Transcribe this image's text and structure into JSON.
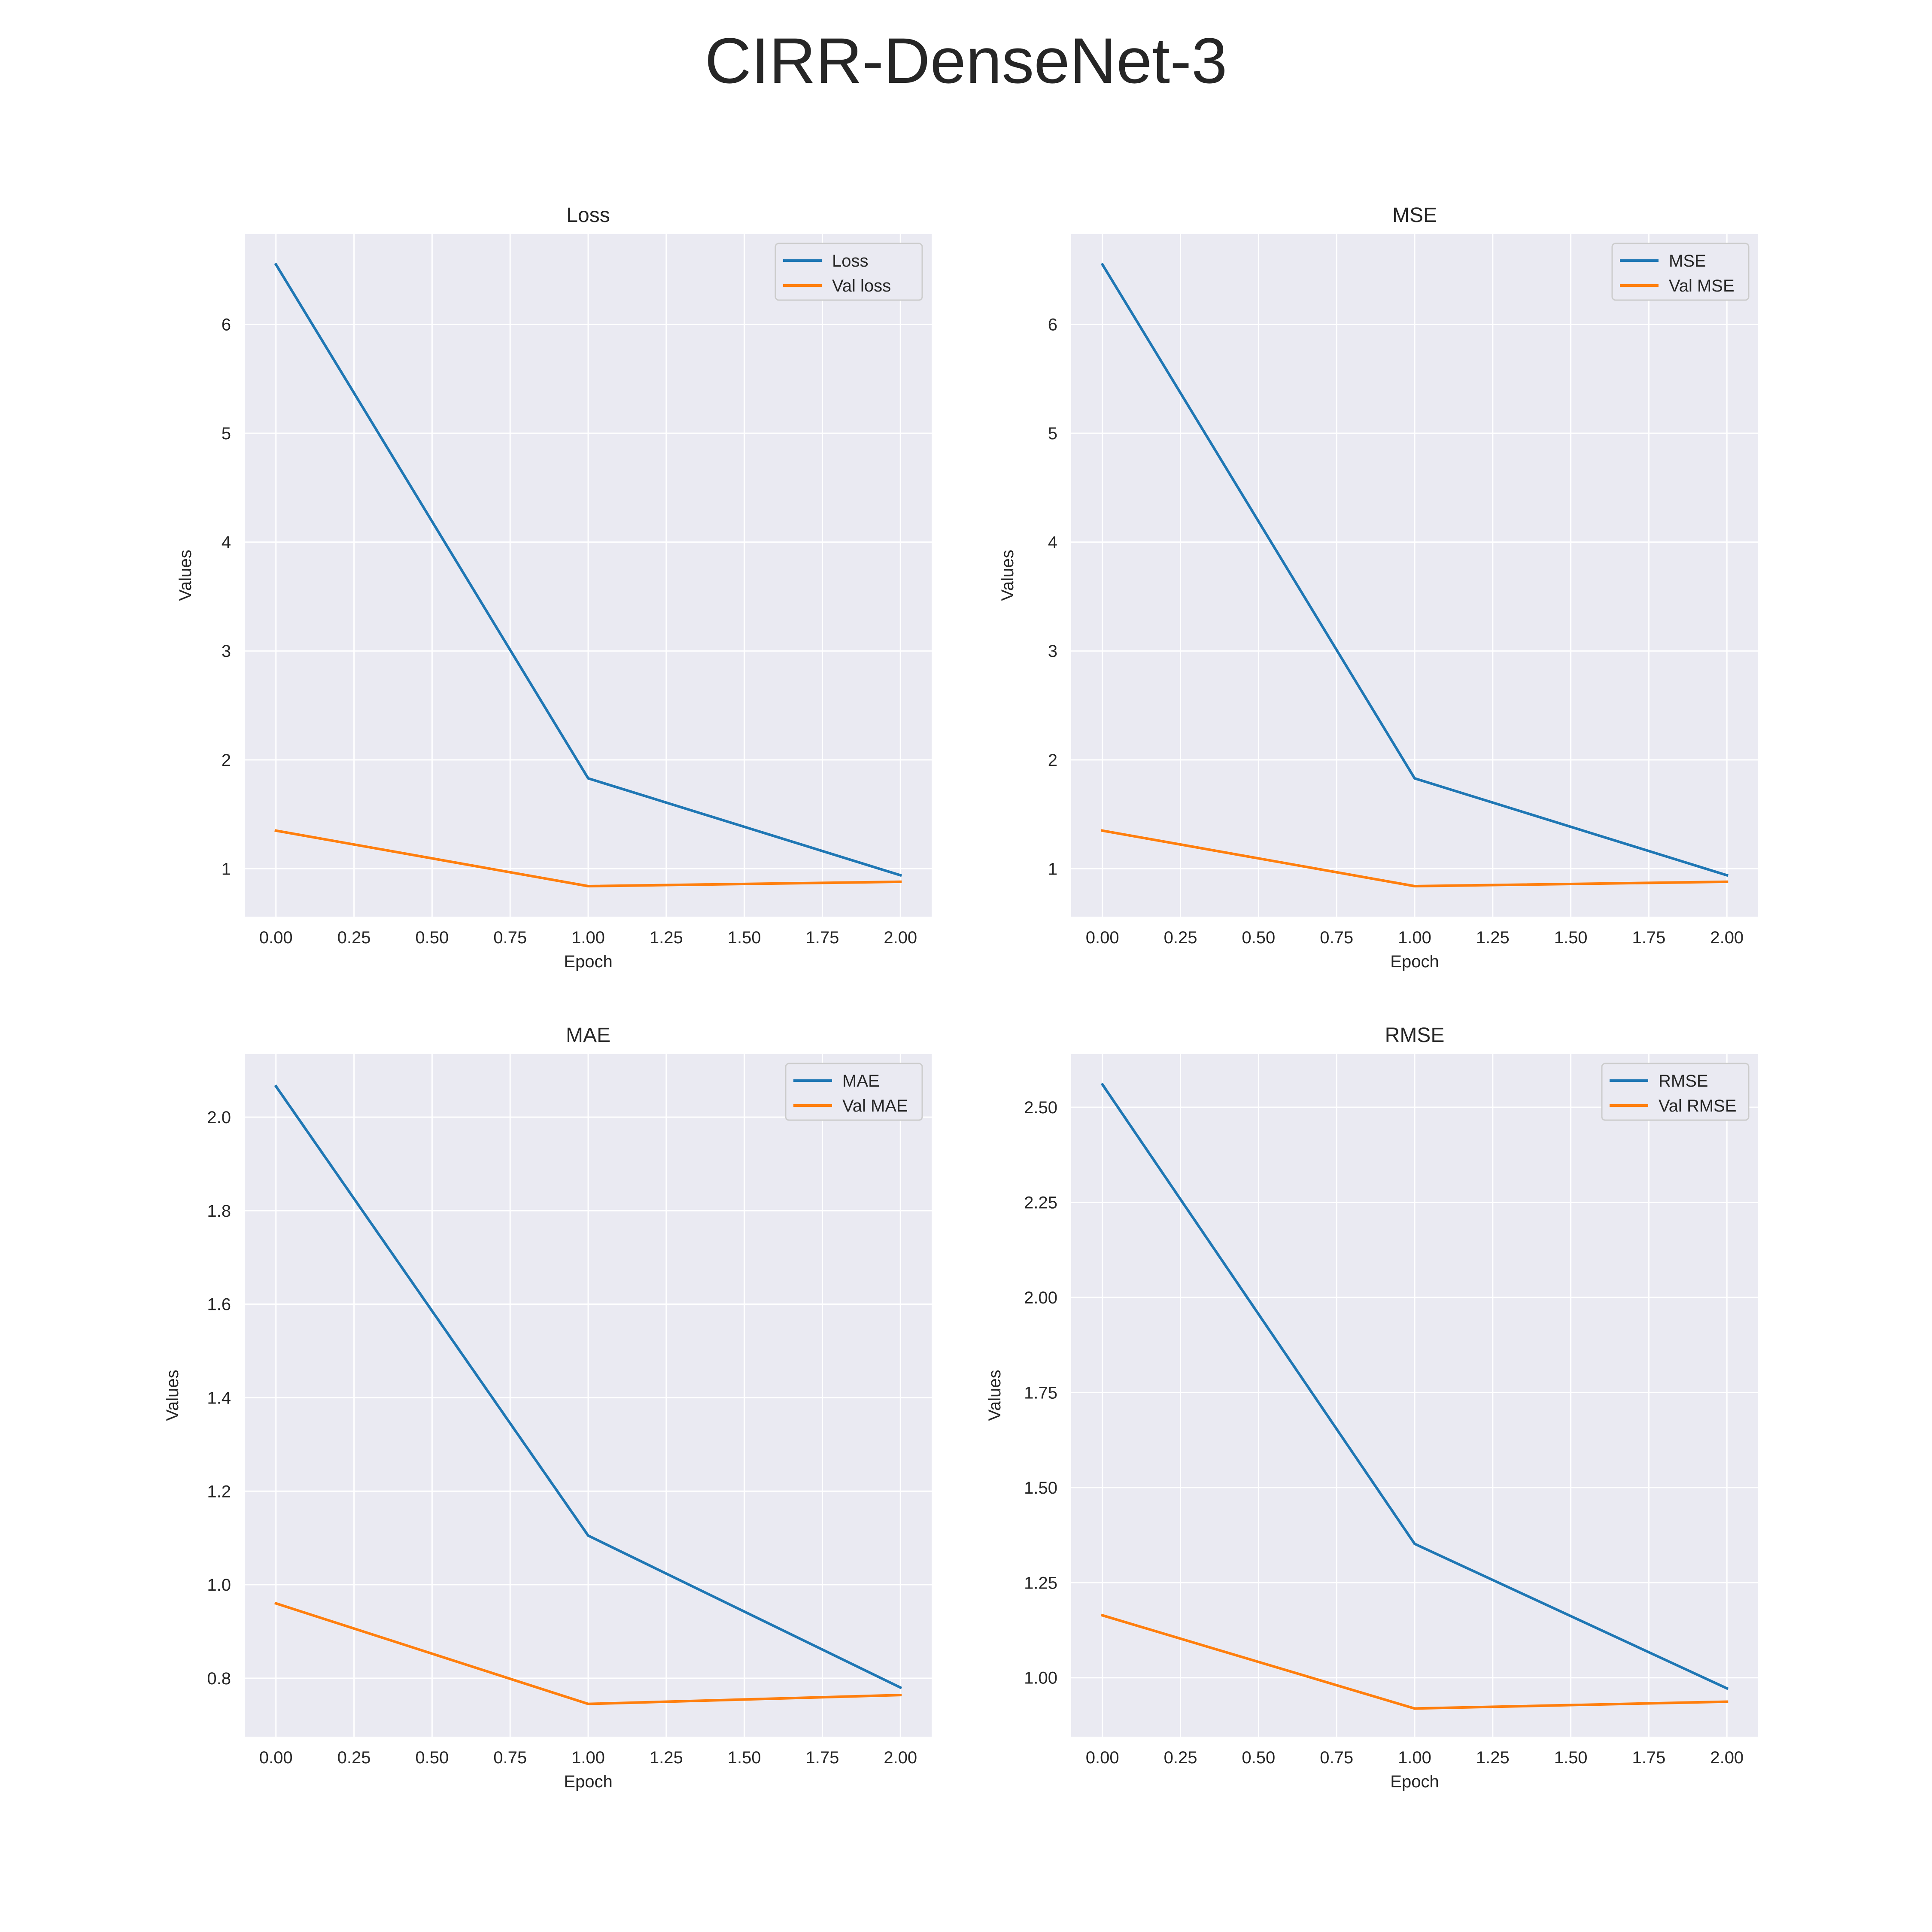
{
  "figure": {
    "suptitle": "CIRR-DenseNet-3"
  },
  "colors": {
    "background": "#eaeaf2",
    "grid": "#ffffff",
    "series_a": "#1f77b4",
    "series_b": "#ff7f0e"
  },
  "chart_data": [
    {
      "type": "line",
      "title": "Loss",
      "xlabel": "Epoch",
      "ylabel": "Values",
      "x": [
        0,
        1,
        2
      ],
      "xlim": [
        -0.1,
        2.1
      ],
      "xticks": [
        0,
        0.25,
        0.5,
        0.75,
        1,
        1.25,
        1.5,
        1.75,
        2
      ],
      "xtick_labels": [
        "0.00",
        "0.25",
        "0.50",
        "0.75",
        "1.00",
        "1.25",
        "1.50",
        "1.75",
        "2.00"
      ],
      "ylim": [
        0.56,
        6.83
      ],
      "yticks": [
        1,
        2,
        3,
        4,
        5,
        6
      ],
      "ytick_labels": [
        "1",
        "2",
        "3",
        "4",
        "5",
        "6"
      ],
      "series": [
        {
          "name": "Loss",
          "values": [
            6.55,
            1.83,
            0.94
          ]
        },
        {
          "name": "Val loss",
          "values": [
            1.35,
            0.84,
            0.88
          ]
        }
      ],
      "legend": "top-right",
      "grid": true
    },
    {
      "type": "line",
      "title": "MSE",
      "xlabel": "Epoch",
      "ylabel": "Values",
      "x": [
        0,
        1,
        2
      ],
      "xlim": [
        -0.1,
        2.1
      ],
      "xticks": [
        0,
        0.25,
        0.5,
        0.75,
        1,
        1.25,
        1.5,
        1.75,
        2
      ],
      "xtick_labels": [
        "0.00",
        "0.25",
        "0.50",
        "0.75",
        "1.00",
        "1.25",
        "1.50",
        "1.75",
        "2.00"
      ],
      "ylim": [
        0.56,
        6.83
      ],
      "yticks": [
        1,
        2,
        3,
        4,
        5,
        6
      ],
      "ytick_labels": [
        "1",
        "2",
        "3",
        "4",
        "5",
        "6"
      ],
      "series": [
        {
          "name": "MSE",
          "values": [
            6.55,
            1.83,
            0.94
          ]
        },
        {
          "name": "Val MSE",
          "values": [
            1.35,
            0.84,
            0.88
          ]
        }
      ],
      "legend": "top-right",
      "grid": true
    },
    {
      "type": "line",
      "title": "MAE",
      "xlabel": "Epoch",
      "ylabel": "Values",
      "x": [
        0,
        1,
        2
      ],
      "xlim": [
        -0.1,
        2.1
      ],
      "xticks": [
        0,
        0.25,
        0.5,
        0.75,
        1,
        1.25,
        1.5,
        1.75,
        2
      ],
      "xtick_labels": [
        "0.00",
        "0.25",
        "0.50",
        "0.75",
        "1.00",
        "1.25",
        "1.50",
        "1.75",
        "2.00"
      ],
      "ylim": [
        0.675,
        2.135
      ],
      "yticks": [
        0.8,
        1.0,
        1.2,
        1.4,
        1.6,
        1.8,
        2.0
      ],
      "ytick_labels": [
        "0.8",
        "1.0",
        "1.2",
        "1.4",
        "1.6",
        "1.8",
        "2.0"
      ],
      "series": [
        {
          "name": "MAE",
          "values": [
            2.066,
            1.105,
            0.78
          ]
        },
        {
          "name": "Val MAE",
          "values": [
            0.96,
            0.745,
            0.764
          ]
        }
      ],
      "legend": "top-right",
      "grid": true
    },
    {
      "type": "line",
      "title": "RMSE",
      "xlabel": "Epoch",
      "ylabel": "Values",
      "x": [
        0,
        1,
        2
      ],
      "xlim": [
        -0.1,
        2.1
      ],
      "xticks": [
        0,
        0.25,
        0.5,
        0.75,
        1,
        1.25,
        1.5,
        1.75,
        2
      ],
      "xtick_labels": [
        "0.00",
        "0.25",
        "0.50",
        "0.75",
        "1.00",
        "1.25",
        "1.50",
        "1.75",
        "2.00"
      ],
      "ylim": [
        0.845,
        2.64
      ],
      "yticks": [
        1.0,
        1.25,
        1.5,
        1.75,
        2.0,
        2.25,
        2.5
      ],
      "ytick_labels": [
        "1.00",
        "1.25",
        "1.50",
        "1.75",
        "2.00",
        "2.25",
        "2.50"
      ],
      "series": [
        {
          "name": "RMSE",
          "values": [
            2.56,
            1.352,
            0.972
          ]
        },
        {
          "name": "Val RMSE",
          "values": [
            1.164,
            0.919,
            0.937
          ]
        }
      ],
      "legend": "top-right",
      "grid": true
    }
  ]
}
